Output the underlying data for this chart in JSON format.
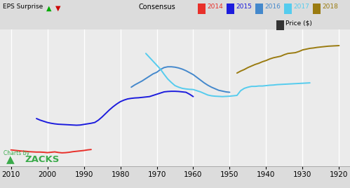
{
  "background_color": "#dcdcdc",
  "plot_bg_color": "#ebebeb",
  "grid_color": "#ffffff",
  "x_ticks": [
    2010,
    2000,
    1990,
    1980,
    1970,
    1960,
    1950,
    1940,
    1930,
    1920
  ],
  "xlim": [
    2013,
    1917
  ],
  "ylim": [
    0.2,
    3.7
  ],
  "series": {
    "2014": {
      "color": "#e8302a",
      "x": [
        2010,
        2009,
        2008,
        2007,
        2006,
        2005,
        2004,
        2003,
        2002,
        2001,
        2000,
        1999,
        1998,
        1997,
        1996,
        1995,
        1994,
        1993,
        1992,
        1991,
        1990,
        1989,
        1988
      ],
      "y": [
        0.62,
        0.61,
        0.6,
        0.59,
        0.585,
        0.575,
        0.57,
        0.565,
        0.565,
        0.56,
        0.55,
        0.56,
        0.57,
        0.555,
        0.545,
        0.55,
        0.56,
        0.575,
        0.585,
        0.595,
        0.605,
        0.62,
        0.63
      ]
    },
    "2015": {
      "color": "#1c1cdd",
      "x": [
        2003,
        2002,
        2001,
        2000,
        1999,
        1998,
        1997,
        1996,
        1995,
        1994,
        1993,
        1992,
        1991,
        1990,
        1989,
        1988,
        1987,
        1986,
        1985,
        1984,
        1983,
        1982,
        1981,
        1980,
        1979,
        1978,
        1977,
        1976,
        1975,
        1974,
        1973,
        1972,
        1971,
        1970,
        1969,
        1968,
        1967,
        1966,
        1965,
        1964,
        1963,
        1962,
        1961,
        1960
      ],
      "y": [
        1.42,
        1.38,
        1.35,
        1.32,
        1.3,
        1.285,
        1.275,
        1.27,
        1.265,
        1.26,
        1.255,
        1.25,
        1.255,
        1.27,
        1.285,
        1.3,
        1.32,
        1.38,
        1.46,
        1.55,
        1.64,
        1.72,
        1.79,
        1.85,
        1.89,
        1.92,
        1.935,
        1.945,
        1.95,
        1.96,
        1.97,
        1.98,
        2.01,
        2.04,
        2.07,
        2.1,
        2.11,
        2.115,
        2.115,
        2.11,
        2.1,
        2.09,
        2.04,
        1.98
      ]
    },
    "2016": {
      "color": "#4488cc",
      "x": [
        1977,
        1976,
        1975,
        1974,
        1973,
        1972,
        1971,
        1970,
        1969,
        1968,
        1967,
        1966,
        1965,
        1964,
        1963,
        1962,
        1961,
        1960,
        1959,
        1958,
        1957,
        1956,
        1955,
        1954,
        1953,
        1952,
        1951,
        1950
      ],
      "y": [
        2.22,
        2.28,
        2.33,
        2.38,
        2.44,
        2.5,
        2.56,
        2.6,
        2.67,
        2.72,
        2.74,
        2.74,
        2.73,
        2.71,
        2.68,
        2.64,
        2.59,
        2.54,
        2.47,
        2.4,
        2.33,
        2.27,
        2.22,
        2.18,
        2.14,
        2.12,
        2.1,
        2.09
      ]
    },
    "2017": {
      "color": "#55ccee",
      "x": [
        1973,
        1972,
        1971,
        1970,
        1969,
        1968,
        1967,
        1966,
        1965,
        1964,
        1963,
        1962,
        1961,
        1960,
        1959,
        1958,
        1957,
        1956,
        1955,
        1954,
        1953,
        1952,
        1951,
        1950,
        1949,
        1948,
        1947,
        1946,
        1945,
        1944,
        1943,
        1942,
        1941,
        1940,
        1939,
        1938,
        1937,
        1936,
        1935,
        1934,
        1933,
        1932,
        1931,
        1930,
        1929,
        1928
      ],
      "y": [
        3.08,
        2.98,
        2.88,
        2.78,
        2.68,
        2.55,
        2.43,
        2.34,
        2.26,
        2.22,
        2.19,
        2.175,
        2.165,
        2.16,
        2.13,
        2.1,
        2.06,
        2.02,
        2.0,
        1.99,
        1.985,
        1.98,
        1.985,
        1.99,
        2.0,
        2.01,
        2.13,
        2.19,
        2.22,
        2.24,
        2.24,
        2.25,
        2.25,
        2.26,
        2.27,
        2.275,
        2.285,
        2.29,
        2.295,
        2.3,
        2.305,
        2.31,
        2.315,
        2.32,
        2.325,
        2.33
      ]
    },
    "2018": {
      "color": "#9a7b10",
      "x": [
        1948,
        1947,
        1946,
        1945,
        1944,
        1943,
        1942,
        1941,
        1940,
        1939,
        1938,
        1937,
        1936,
        1935,
        1934,
        1933,
        1932,
        1931,
        1930,
        1929,
        1928,
        1927,
        1926,
        1925,
        1924,
        1923,
        1922,
        1921,
        1920
      ],
      "y": [
        2.58,
        2.63,
        2.67,
        2.72,
        2.76,
        2.8,
        2.83,
        2.87,
        2.9,
        2.94,
        2.97,
        2.99,
        3.01,
        3.05,
        3.08,
        3.09,
        3.1,
        3.13,
        3.17,
        3.19,
        3.21,
        3.22,
        3.235,
        3.245,
        3.255,
        3.265,
        3.27,
        3.275,
        3.28
      ]
    }
  },
  "legend_entries": [
    {
      "label": "2014",
      "color": "#e8302a"
    },
    {
      "label": "2015",
      "color": "#1c1cdd"
    },
    {
      "label": "2016",
      "color": "#4488cc"
    },
    {
      "label": "2017",
      "color": "#55ccee"
    },
    {
      "label": "2018",
      "color": "#9a7b10"
    }
  ],
  "eps_up_color": "#00aa00",
  "eps_down_color": "#cc0000",
  "zacks_green": "#3aaa4a",
  "price_box_color": "#333333"
}
